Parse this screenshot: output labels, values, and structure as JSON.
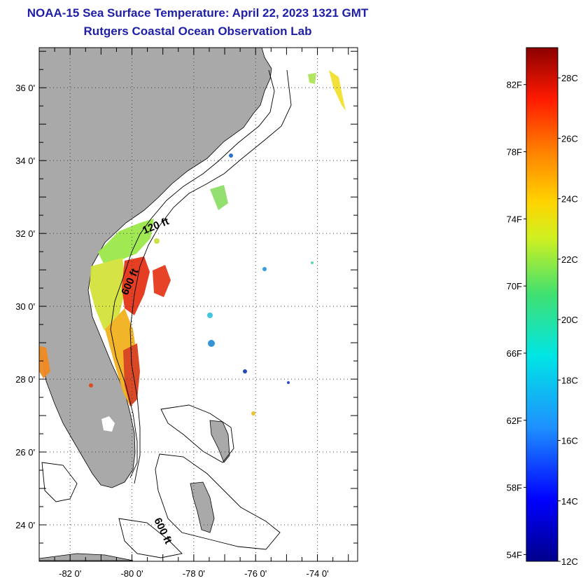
{
  "header": {
    "title": "NOAA-15 Sea Surface Temperature:  April 22, 2023 1321 GMT",
    "subtitle": "Rutgers Coastal Ocean Observation Lab"
  },
  "map": {
    "lon_range": [
      -83,
      -72.7
    ],
    "lat_range": [
      23,
      37.1
    ],
    "lat_ticks": [
      {
        "value": 36,
        "label": "36 0'"
      },
      {
        "value": 34,
        "label": "34 0'"
      },
      {
        "value": 32,
        "label": "32 0'"
      },
      {
        "value": 30,
        "label": "30 0'"
      },
      {
        "value": 28,
        "label": "28 0'"
      },
      {
        "value": 26,
        "label": "26 0'"
      },
      {
        "value": 24,
        "label": "24 0'"
      }
    ],
    "lon_ticks": [
      {
        "value": -82,
        "label": "-82 0'"
      },
      {
        "value": -80,
        "label": "-80 0'"
      },
      {
        "value": -78,
        "label": "-78 0'"
      },
      {
        "value": -76,
        "label": "-76 0'"
      },
      {
        "value": -74,
        "label": "-74 0'"
      }
    ],
    "contour_labels": [
      {
        "text": "120 ft"
      },
      {
        "text": "600 ft"
      },
      {
        "text": "600 ft"
      }
    ],
    "colors": {
      "land": "#a9a9a9",
      "grid": "#444444",
      "coast": "#000000"
    }
  },
  "colorbar": {
    "range_c": [
      12,
      29
    ],
    "f_labels": [
      "82F",
      "78F",
      "74F",
      "70F",
      "66F",
      "62F",
      "58F",
      "54F"
    ],
    "c_labels": [
      "28C",
      "26C",
      "24C",
      "22C",
      "20C",
      "18C",
      "16C",
      "14C",
      "12C"
    ]
  }
}
